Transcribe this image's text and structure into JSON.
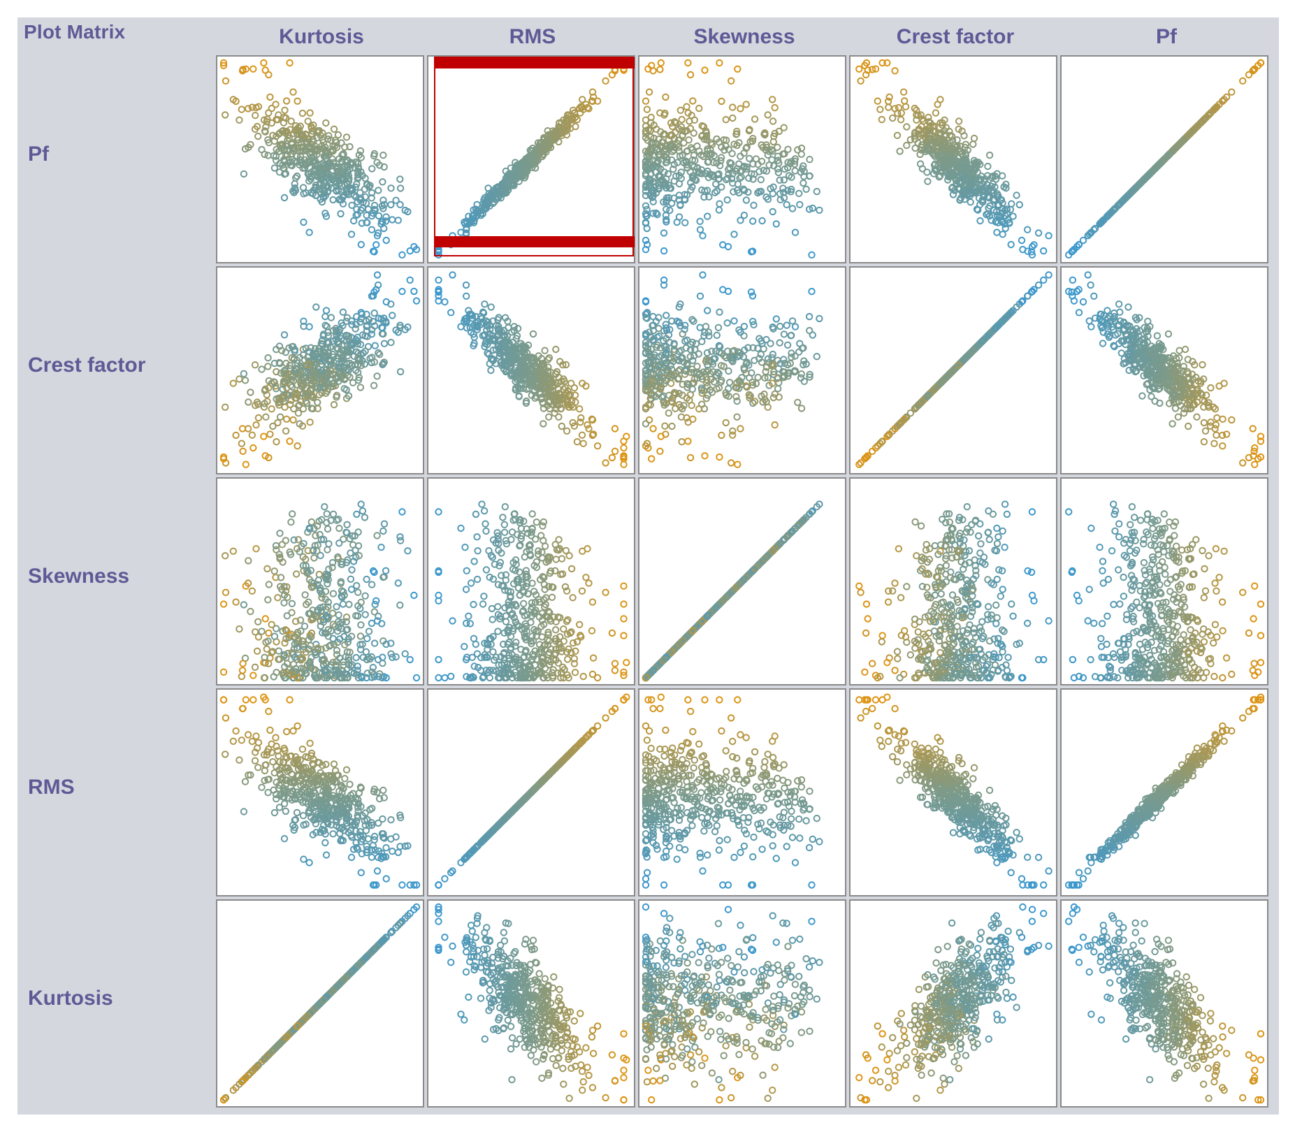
{
  "title": "Plot Matrix",
  "columns": [
    "Kurtosis",
    "RMS",
    "Skewness",
    "Crest factor",
    "Pf"
  ],
  "rows": [
    "Pf",
    "Crest factor",
    "Skewness",
    "RMS",
    "Kurtosis"
  ],
  "selected_cell": {
    "row": "Pf",
    "column": "RMS"
  },
  "colors": {
    "low": "#3a98cf",
    "mid": "#7d9a8a",
    "high": "#e0940f",
    "label": "#5e5a96",
    "panel": "#d5d7de",
    "selection": "#c00000"
  },
  "chart_data": {
    "type": "scatter",
    "variables": [
      "Kurtosis",
      "RMS",
      "Skewness",
      "Crest factor",
      "Pf"
    ],
    "n_points": 500,
    "correlations": {
      "RMS~Pf": 0.98,
      "RMS~Kurtosis": -0.55,
      "RMS~Crest factor": -0.85,
      "Kurtosis~Crest factor": 0.72,
      "Pf~Crest factor": -0.82,
      "Pf~Kurtosis": -0.5,
      "Skewness~others": "weak, right-skewed"
    },
    "point_color_encoding": "RMS (blue = low, orange = high)",
    "marker": "open circle",
    "grid": false,
    "axes_ticks": false
  }
}
